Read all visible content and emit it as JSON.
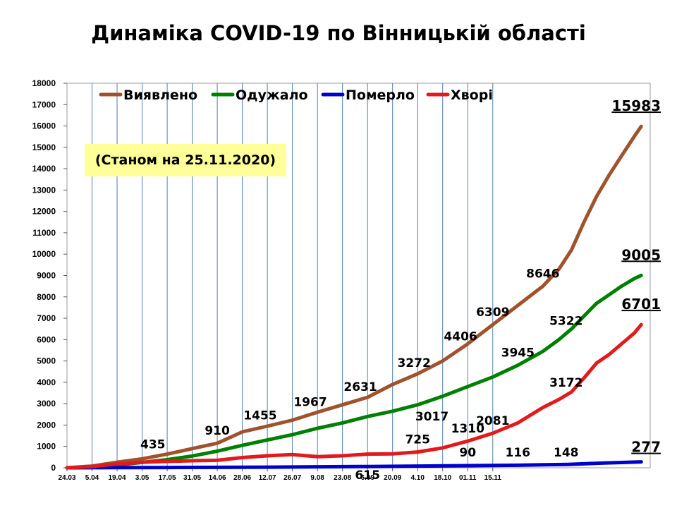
{
  "title": "Динаміка COVID-19 по Вінницькій області",
  "note": "(Станом на 25.11.2020)",
  "colors": {
    "detected": "#a0522d",
    "recovered": "#008000",
    "died": "#0000cc",
    "sick": "#e31a1c",
    "grid": "#4f7fb0"
  },
  "chart_data": {
    "type": "line",
    "title": "Динаміка COVID-19 по Вінницькій області",
    "xlabel": "",
    "ylabel": "",
    "ylim": [
      0,
      18000
    ],
    "yticks": [
      0,
      1000,
      2000,
      3000,
      4000,
      5000,
      6000,
      7000,
      8000,
      9000,
      10000,
      11000,
      12000,
      13000,
      14000,
      15000,
      16000,
      17000,
      18000
    ],
    "xticks": [
      "24.03",
      "5.04",
      "19.04",
      "3.05",
      "17.05",
      "31.05",
      "14.06",
      "28.06",
      "12.07",
      "26.07",
      "9.08",
      "23.08",
      "6.09",
      "20.09",
      "4.10",
      "18.10",
      "01.11",
      "15.11"
    ],
    "grid_x": true,
    "grid_y": false,
    "legend_position": "top",
    "series": [
      {
        "name": "Виявлено",
        "key": "detected",
        "points": [
          [
            0,
            0
          ],
          [
            14,
            80
          ],
          [
            28,
            260
          ],
          [
            42,
            420
          ],
          [
            56,
            640
          ],
          [
            70,
            900
          ],
          [
            84,
            1150
          ],
          [
            98,
            1680
          ],
          [
            112,
            1950
          ],
          [
            126,
            2230
          ],
          [
            140,
            2600
          ],
          [
            154,
            2950
          ],
          [
            168,
            3300
          ],
          [
            182,
            3900
          ],
          [
            196,
            4400
          ],
          [
            210,
            5000
          ],
          [
            224,
            5800
          ],
          [
            238,
            6700
          ],
          [
            252,
            7600
          ],
          [
            266,
            8500
          ],
          [
            275,
            9300
          ],
          [
            282,
            10200
          ],
          [
            289,
            11500
          ],
          [
            296,
            12700
          ],
          [
            303,
            13700
          ],
          [
            310,
            14600
          ],
          [
            317,
            15500
          ],
          [
            321,
            15983
          ]
        ],
        "labels": [
          [
            48,
            "435"
          ],
          [
            84,
            "910"
          ],
          [
            108,
            "1455"
          ],
          [
            136,
            "1967"
          ],
          [
            164,
            "2631"
          ],
          [
            194,
            "3272"
          ],
          [
            220,
            "4406"
          ],
          [
            238,
            "6309"
          ],
          [
            266,
            "8646"
          ]
        ],
        "final": "15983"
      },
      {
        "name": "Одужало",
        "key": "recovered",
        "points": [
          [
            0,
            0
          ],
          [
            14,
            40
          ],
          [
            28,
            130
          ],
          [
            42,
            250
          ],
          [
            56,
            380
          ],
          [
            70,
            550
          ],
          [
            84,
            780
          ],
          [
            98,
            1050
          ],
          [
            112,
            1300
          ],
          [
            126,
            1550
          ],
          [
            140,
            1850
          ],
          [
            154,
            2100
          ],
          [
            168,
            2400
          ],
          [
            182,
            2650
          ],
          [
            196,
            2950
          ],
          [
            210,
            3350
          ],
          [
            224,
            3800
          ],
          [
            238,
            4250
          ],
          [
            252,
            4800
          ],
          [
            266,
            5450
          ],
          [
            275,
            6000
          ],
          [
            282,
            6500
          ],
          [
            289,
            7100
          ],
          [
            296,
            7700
          ],
          [
            303,
            8100
          ],
          [
            310,
            8500
          ],
          [
            317,
            8850
          ],
          [
            321,
            9005
          ]
        ],
        "labels": [
          [
            204,
            "3017"
          ],
          [
            252,
            "3945"
          ],
          [
            279,
            "5322"
          ]
        ],
        "final": "9005"
      },
      {
        "name": "Померло",
        "key": "died",
        "points": [
          [
            0,
            0
          ],
          [
            28,
            5
          ],
          [
            56,
            12
          ],
          [
            84,
            20
          ],
          [
            112,
            30
          ],
          [
            140,
            45
          ],
          [
            168,
            60
          ],
          [
            196,
            80
          ],
          [
            224,
            100
          ],
          [
            252,
            120
          ],
          [
            280,
            160
          ],
          [
            300,
            220
          ],
          [
            321,
            277
          ]
        ],
        "labels": [
          [
            224,
            "90"
          ],
          [
            252,
            "116"
          ],
          [
            279,
            "148"
          ]
        ],
        "final": "277"
      },
      {
        "name": "Хворі",
        "key": "sick",
        "points": [
          [
            0,
            0
          ],
          [
            14,
            60
          ],
          [
            28,
            180
          ],
          [
            42,
            260
          ],
          [
            56,
            300
          ],
          [
            70,
            330
          ],
          [
            84,
            350
          ],
          [
            98,
            480
          ],
          [
            112,
            560
          ],
          [
            126,
            620
          ],
          [
            140,
            520
          ],
          [
            154,
            560
          ],
          [
            168,
            640
          ],
          [
            182,
            650
          ],
          [
            196,
            740
          ],
          [
            210,
            930
          ],
          [
            224,
            1250
          ],
          [
            238,
            1620
          ],
          [
            252,
            2100
          ],
          [
            266,
            2820
          ],
          [
            275,
            3200
          ],
          [
            282,
            3550
          ],
          [
            289,
            4200
          ],
          [
            296,
            4900
          ],
          [
            303,
            5300
          ],
          [
            310,
            5800
          ],
          [
            317,
            6300
          ],
          [
            321,
            6701
          ]
        ],
        "labels": [
          [
            196,
            "725"
          ],
          [
            224,
            "1310"
          ],
          [
            238,
            "2081"
          ],
          [
            279,
            "3172"
          ],
          [
            168,
            "615"
          ]
        ],
        "final": "6701"
      }
    ]
  }
}
